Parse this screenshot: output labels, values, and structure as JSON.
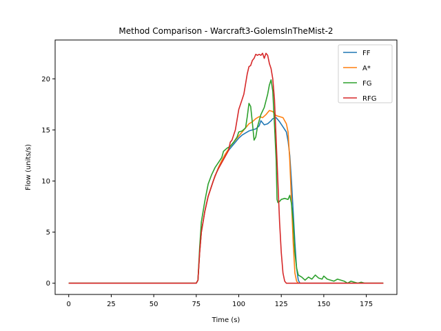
{
  "chart_data": {
    "type": "line",
    "title": "Method Comparison - Warcraft3-GolemsInTheMist-2",
    "xlabel": "Time (s)",
    "ylabel": "Flow (units/s)",
    "xlim": [
      -8,
      193
    ],
    "ylim": [
      -1.1,
      23.8
    ],
    "xticks": [
      0,
      25,
      50,
      75,
      100,
      125,
      150,
      175
    ],
    "yticks": [
      0,
      5,
      10,
      15,
      20
    ],
    "grid": false,
    "legend_position": "top-right",
    "series": [
      {
        "name": "FF",
        "color": "#1f77b4",
        "points": [
          [
            0,
            0
          ],
          [
            75,
            0
          ],
          [
            76,
            0.3
          ],
          [
            77,
            3
          ],
          [
            78,
            5
          ],
          [
            80,
            7
          ],
          [
            82,
            8.5
          ],
          [
            85,
            10
          ],
          [
            88,
            11.3
          ],
          [
            90,
            12
          ],
          [
            92,
            12.6
          ],
          [
            95,
            13.2
          ],
          [
            98,
            13.8
          ],
          [
            100,
            14.2
          ],
          [
            102,
            14.5
          ],
          [
            104,
            14.7
          ],
          [
            106,
            14.9
          ],
          [
            108,
            15
          ],
          [
            110,
            15.1
          ],
          [
            112,
            15.4
          ],
          [
            113,
            15.9
          ],
          [
            115,
            15.5
          ],
          [
            117,
            15.6
          ],
          [
            119,
            15.9
          ],
          [
            120,
            16.1
          ],
          [
            122,
            16.2
          ],
          [
            124,
            15.8
          ],
          [
            126,
            15.3
          ],
          [
            128,
            14.8
          ],
          [
            129,
            13.9
          ],
          [
            130,
            12.5
          ],
          [
            131,
            10
          ],
          [
            132,
            7
          ],
          [
            133,
            4
          ],
          [
            134,
            1.5
          ],
          [
            135,
            0.3
          ],
          [
            136,
            0
          ],
          [
            185,
            0
          ]
        ]
      },
      {
        "name": "A*",
        "color": "#ff7f0e",
        "points": [
          [
            0,
            0
          ],
          [
            75,
            0
          ],
          [
            76,
            0.3
          ],
          [
            77,
            3
          ],
          [
            78,
            5
          ],
          [
            80,
            7
          ],
          [
            82,
            8.5
          ],
          [
            85,
            10
          ],
          [
            88,
            11.3
          ],
          [
            90,
            12
          ],
          [
            92,
            12.6
          ],
          [
            95,
            13.4
          ],
          [
            98,
            14
          ],
          [
            100,
            14.4
          ],
          [
            102,
            14.8
          ],
          [
            104,
            15.2
          ],
          [
            106,
            15.6
          ],
          [
            108,
            15.8
          ],
          [
            110,
            16.1
          ],
          [
            112,
            16.3
          ],
          [
            114,
            16.2
          ],
          [
            116,
            16.5
          ],
          [
            118,
            16.9
          ],
          [
            120,
            16.8
          ],
          [
            122,
            16.4
          ],
          [
            124,
            16.3
          ],
          [
            126,
            16.2
          ],
          [
            128,
            15.6
          ],
          [
            129,
            14.8
          ],
          [
            130,
            12
          ],
          [
            131,
            8
          ],
          [
            132,
            4
          ],
          [
            133,
            1
          ],
          [
            134,
            0.2
          ],
          [
            135,
            0
          ],
          [
            185,
            0
          ]
        ]
      },
      {
        "name": "FG",
        "color": "#2ca02c",
        "points": [
          [
            0,
            0
          ],
          [
            75,
            0
          ],
          [
            76,
            0.3
          ],
          [
            77,
            3.5
          ],
          [
            78,
            6
          ],
          [
            80,
            8
          ],
          [
            82,
            9.7
          ],
          [
            84,
            10.6
          ],
          [
            86,
            11.3
          ],
          [
            88,
            11.8
          ],
          [
            90,
            12.3
          ],
          [
            91,
            12.9
          ],
          [
            93,
            13.2
          ],
          [
            95,
            13.4
          ],
          [
            97,
            13.8
          ],
          [
            99,
            14.3
          ],
          [
            100,
            14.8
          ],
          [
            102,
            14.9
          ],
          [
            104,
            15.2
          ],
          [
            105,
            16.3
          ],
          [
            106,
            17.6
          ],
          [
            107,
            17.3
          ],
          [
            108,
            15.7
          ],
          [
            109,
            14
          ],
          [
            110,
            14.3
          ],
          [
            111,
            15.3
          ],
          [
            113,
            16.5
          ],
          [
            115,
            17.2
          ],
          [
            117,
            18.5
          ],
          [
            118,
            19.4
          ],
          [
            119,
            19.9
          ],
          [
            120,
            18.8
          ],
          [
            121,
            15.5
          ],
          [
            122,
            12
          ],
          [
            122.5,
            8.2
          ],
          [
            123,
            7.9
          ],
          [
            124,
            8
          ],
          [
            125,
            8.2
          ],
          [
            127,
            8.3
          ],
          [
            129,
            8.2
          ],
          [
            130,
            8.6
          ],
          [
            131,
            7.8
          ],
          [
            132,
            6
          ],
          [
            133,
            3
          ],
          [
            134,
            1.5
          ],
          [
            135,
            0.8
          ],
          [
            137,
            0.6
          ],
          [
            139,
            0.3
          ],
          [
            141,
            0.6
          ],
          [
            143,
            0.4
          ],
          [
            145,
            0.8
          ],
          [
            147,
            0.5
          ],
          [
            149,
            0.4
          ],
          [
            150,
            0.7
          ],
          [
            152,
            0.4
          ],
          [
            154,
            0.3
          ],
          [
            156,
            0.2
          ],
          [
            158,
            0.4
          ],
          [
            160,
            0.3
          ],
          [
            162,
            0.2
          ],
          [
            164,
            0
          ],
          [
            166,
            0.2
          ],
          [
            168,
            0.1
          ],
          [
            170,
            0
          ],
          [
            172,
            0.1
          ],
          [
            174,
            0
          ],
          [
            185,
            0
          ]
        ]
      },
      {
        "name": "RFG",
        "color": "#d62728",
        "points": [
          [
            0,
            0
          ],
          [
            75,
            0
          ],
          [
            76,
            0.3
          ],
          [
            77,
            3
          ],
          [
            78,
            5
          ],
          [
            80,
            7
          ],
          [
            82,
            8.5
          ],
          [
            84,
            9.5
          ],
          [
            86,
            10.5
          ],
          [
            88,
            11.2
          ],
          [
            90,
            11.8
          ],
          [
            92,
            12.4
          ],
          [
            94,
            13
          ],
          [
            95,
            13.8
          ],
          [
            96,
            14
          ],
          [
            97,
            14.5
          ],
          [
            98,
            15
          ],
          [
            99,
            16
          ],
          [
            100,
            17
          ],
          [
            101,
            17.5
          ],
          [
            102,
            18
          ],
          [
            103,
            18.5
          ],
          [
            104,
            19.5
          ],
          [
            105,
            20.5
          ],
          [
            106,
            21.2
          ],
          [
            107,
            21.3
          ],
          [
            108,
            21.8
          ],
          [
            109,
            22
          ],
          [
            110,
            22.4
          ],
          [
            111,
            22.3
          ],
          [
            112,
            22.4
          ],
          [
            113,
            22.3
          ],
          [
            114,
            22.5
          ],
          [
            115,
            22
          ],
          [
            116,
            22.5
          ],
          [
            117,
            22.3
          ],
          [
            118,
            21.5
          ],
          [
            119,
            21
          ],
          [
            120,
            20
          ],
          [
            121,
            18
          ],
          [
            122,
            14
          ],
          [
            123,
            10
          ],
          [
            124,
            6
          ],
          [
            125,
            3
          ],
          [
            126,
            1
          ],
          [
            127,
            0.2
          ],
          [
            128,
            0
          ],
          [
            185,
            0
          ]
        ]
      }
    ]
  }
}
